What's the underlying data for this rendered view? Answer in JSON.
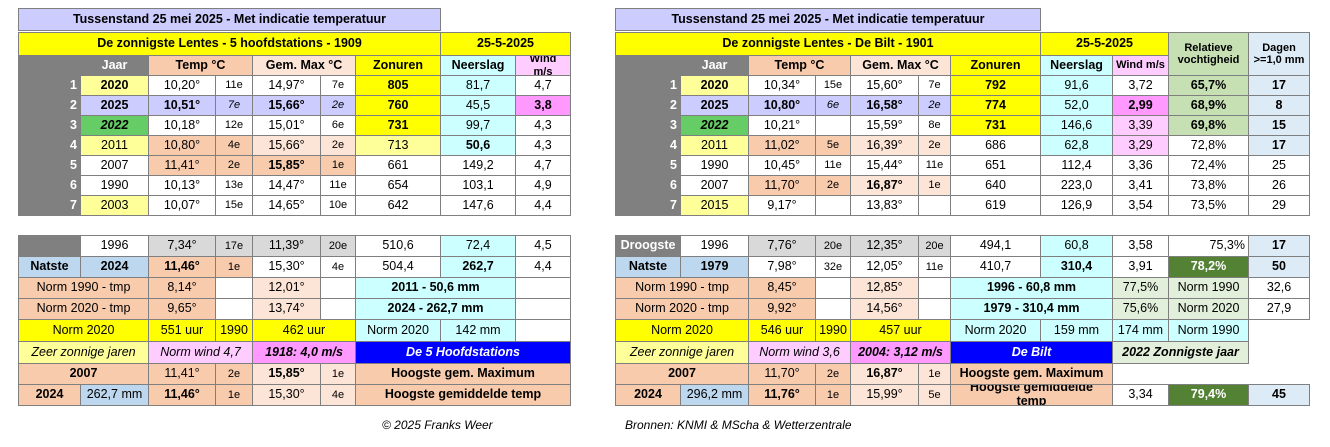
{
  "left": {
    "rows": [
      [
        "Tussenstand 25 mei 2025 - Met indicatie temperatuur"
      ],
      [
        "De zonnigste Lentes - 5 hoofdstations  - 1909",
        "25-5-2025"
      ],
      [
        "Jaar",
        "Temp °C",
        "Gem. Max °C",
        "Zonuren",
        "Neerslag",
        "Wind m/s"
      ],
      [
        "1",
        "2020",
        "10,20°",
        "11e",
        "14,97°",
        "7e",
        "805",
        "81,7",
        "4,7"
      ],
      [
        "2",
        "2025",
        "10,51°",
        "7e",
        "15,66°",
        "2e",
        "760",
        "45,5",
        "3,8"
      ],
      [
        "3",
        "2022",
        "10,18°",
        "12e",
        "15,01°",
        "6e",
        "731",
        "99,7",
        "4,3"
      ],
      [
        "4",
        "2011",
        "10,80°",
        "4e",
        "15,66°",
        "2e",
        "713",
        "50,6",
        "4,3"
      ],
      [
        "5",
        "2007",
        "11,41°",
        "2e",
        "15,85°",
        "1e",
        "661",
        "149,2",
        "4,7"
      ],
      [
        "6",
        "1990",
        "10,13°",
        "13e",
        "14,47°",
        "11e",
        "654",
        "103,1",
        "4,9"
      ],
      [
        "7",
        "2003",
        "10,07°",
        "15e",
        "14,65°",
        "10e",
        "642",
        "147,6",
        "4,4"
      ],
      [
        "1996",
        "7,34°",
        "17e",
        "11,39°",
        "20e",
        "510,6",
        "72,4",
        "4,5"
      ],
      [
        "Natste",
        "2024",
        "11,46°",
        "1e",
        "15,30°",
        "4e",
        "504,4",
        "262,7",
        "4,4"
      ],
      [
        "Norm 1990 - tmp",
        "8,14°",
        "12,01°",
        "2011 - 50,6 mm"
      ],
      [
        "Norm 2020 - tmp",
        "9,65°",
        "13,74°",
        "2024 - 262,7 mm"
      ],
      [
        "Norm 2020",
        "551 uur",
        "1990",
        "462 uur",
        "Norm 2020",
        "142 mm"
      ],
      [
        "Zeer zonnige jaren",
        "Norm wind 4,7",
        "1918: 4,0 m/s",
        "De 5 Hoofdstations"
      ],
      [
        "2007",
        "11,41°",
        "2e",
        "15,85°",
        "1e",
        "Hoogste gem. Maximum"
      ],
      [
        "2024",
        "262,7 mm",
        "11,46°",
        "1e",
        "15,30°",
        "4e",
        "Hoogste gemiddelde temp"
      ]
    ]
  },
  "right": {
    "rows": [
      [
        "Tussenstand 25 mei 2025 - Met indicatie temperatuur"
      ],
      [
        "De zonnigste Lentes - De Bilt  - 1901",
        "25-5-2025",
        "Relatieve vochtigheid",
        "Dagen >=1,0 mm"
      ],
      [
        "Jaar",
        "Temp °C",
        "Gem. Max °C",
        "Zonuren",
        "Neerslag",
        "Wind m/s"
      ],
      [
        "1",
        "2020",
        "10,34°",
        "15e",
        "15,60°",
        "7e",
        "792",
        "91,6",
        "3,72",
        "65,7%",
        "17"
      ],
      [
        "2",
        "2025",
        "10,80°",
        "6e",
        "16,58°",
        "2e",
        "774",
        "52,0",
        "2,99",
        "68,9%",
        "8"
      ],
      [
        "3",
        "2022",
        "10,21°",
        "15,59°",
        "8e",
        "731",
        "146,6",
        "3,39",
        "69,8%",
        "15"
      ],
      [
        "4",
        "2011",
        "11,02°",
        "5e",
        "16,39°",
        "2e",
        "686",
        "62,8",
        "3,29",
        "72,8%",
        "17"
      ],
      [
        "5",
        "1990",
        "10,45°",
        "11e",
        "15,44°",
        "11e",
        "651",
        "112,4",
        "3,36",
        "72,4%",
        "25"
      ],
      [
        "6",
        "2007",
        "11,70°",
        "2e",
        "16,87°",
        "1e",
        "640",
        "223,0",
        "3,41",
        "73,8%",
        "26"
      ],
      [
        "7",
        "2015",
        "9,17°",
        "13,83°",
        "619",
        "126,9",
        "3,54",
        "73,5%",
        "29"
      ],
      [
        "Droogste",
        "1996",
        "7,76°",
        "20e",
        "12,35°",
        "20e",
        "494,1",
        "60,8",
        "3,58",
        "75,3%",
        "17"
      ],
      [
        "Natste",
        "1979",
        "7,98°",
        "32e",
        "12,05°",
        "11e",
        "410,7",
        "310,4",
        "3,91",
        "78,2%",
        "50"
      ],
      [
        "Norm 1990 - tmp",
        "8,45°",
        "12,85°",
        "1996 - 60,8 mm",
        "77,5%",
        "Norm 1990",
        "32,6"
      ],
      [
        "Norm 2020 - tmp",
        "9,92°",
        "14,56°",
        "1979 - 310,4 mm",
        "75,6%",
        "Norm 2020",
        "27,9"
      ],
      [
        "Norm 2020",
        "546 uur",
        "1990",
        "457 uur",
        "Norm 2020",
        "159 mm",
        "174 mm",
        "Norm 1990"
      ],
      [
        "Zeer zonnige jaren",
        "Norm wind 3,6",
        "2004: 3,12 m/s",
        "De Bilt",
        "2022 Zonnigste jaar"
      ],
      [
        "2007",
        "11,70°",
        "2e",
        "16,87°",
        "1e",
        "Hoogste gem. Maximum"
      ],
      [
        "2024",
        "296,2 mm",
        "11,76°",
        "1e",
        "15,99°",
        "5e",
        "Hoogste gemiddelde temp",
        "3,34",
        "79,4%",
        "45"
      ]
    ]
  },
  "footer": {
    "copyright": "© 2025 Franks Weer",
    "sources": "Bronnen: KNMI & MScha  & Wetterzentrale"
  }
}
